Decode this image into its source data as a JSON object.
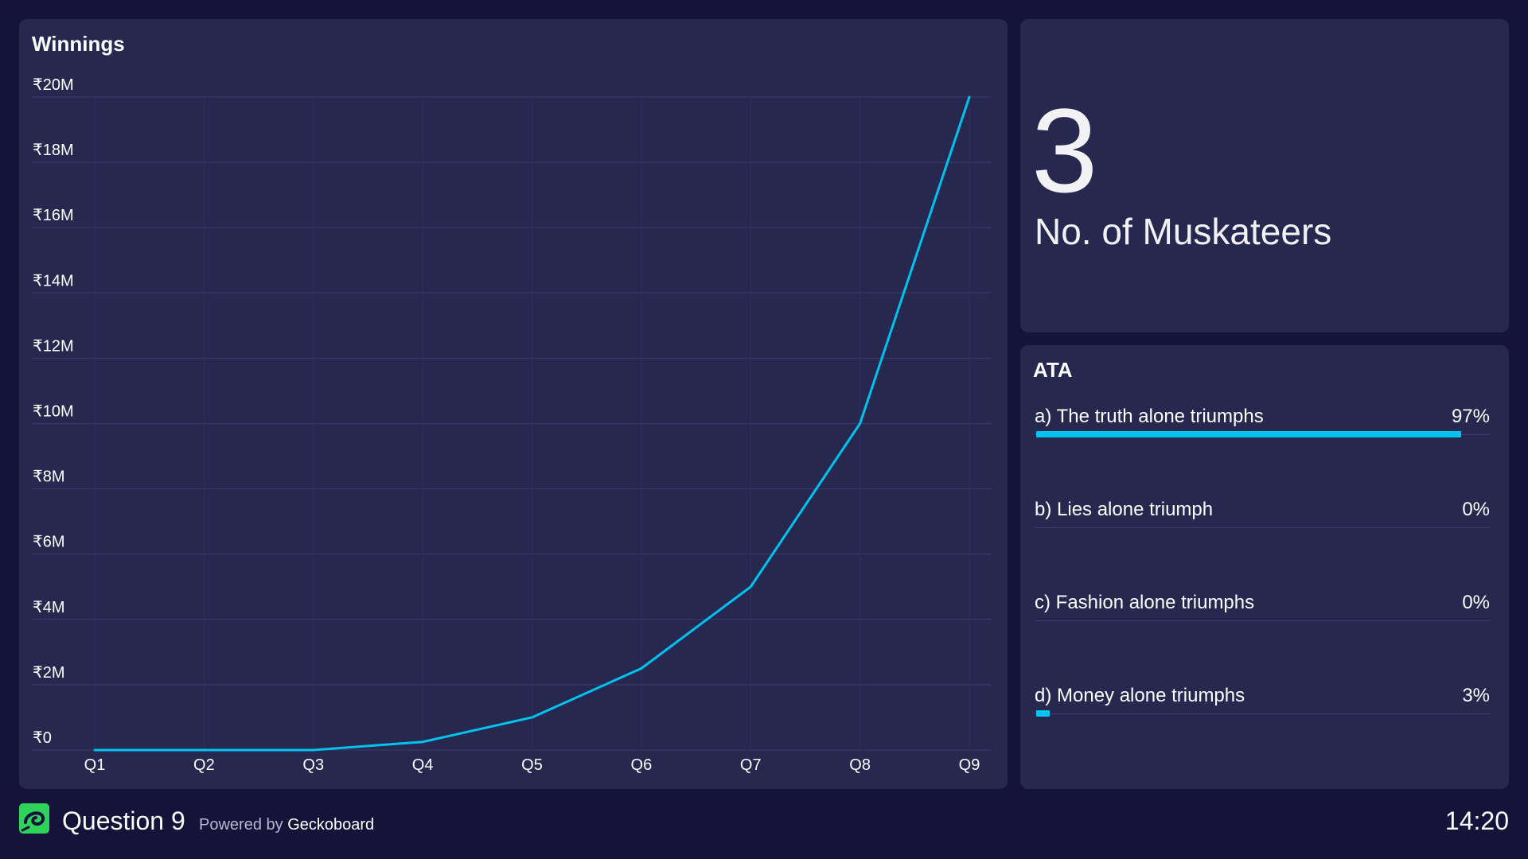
{
  "chart_panel": {
    "title": "Winnings"
  },
  "chart_data": {
    "type": "line",
    "categories": [
      "Q1",
      "Q2",
      "Q3",
      "Q4",
      "Q5",
      "Q6",
      "Q7",
      "Q8",
      "Q9"
    ],
    "series": [
      {
        "values": [
          0,
          0,
          0,
          0.25,
          1,
          2.5,
          5,
          10,
          20
        ]
      }
    ],
    "y_ticks": [
      "₹0",
      "₹2M",
      "₹4M",
      "₹6M",
      "₹8M",
      "₹10M",
      "₹12M",
      "₹14M",
      "₹16M",
      "₹18M",
      "₹20M"
    ],
    "ylim": [
      0,
      20
    ],
    "grid": true,
    "line_color": "#00c2ee"
  },
  "number_panel": {
    "value": "3",
    "label": "No. of Muskateers"
  },
  "ata_panel": {
    "title": "ATA",
    "items": [
      {
        "label": "a) The truth alone triumphs",
        "value": "97%",
        "fraction": 0.97
      },
      {
        "label": "b) Lies alone triumph",
        "value": "0%",
        "fraction": 0
      },
      {
        "label": "c) Fashion alone triumphs",
        "value": "0%",
        "fraction": 0
      },
      {
        "label": "d) Money alone triumphs",
        "value": "3%",
        "fraction": 0.03
      }
    ],
    "bar_color": "#00c2ee"
  },
  "footer": {
    "logo_icon": "geckoboard-logo-icon",
    "title": "Question 9",
    "powered_prefix": "Powered by",
    "powered_brand": "Geckoboard",
    "time": "14:20"
  },
  "colors": {
    "background": "#15133a",
    "panel": "#262850",
    "accent": "#00c2ee",
    "logo": "#2fd35b"
  }
}
